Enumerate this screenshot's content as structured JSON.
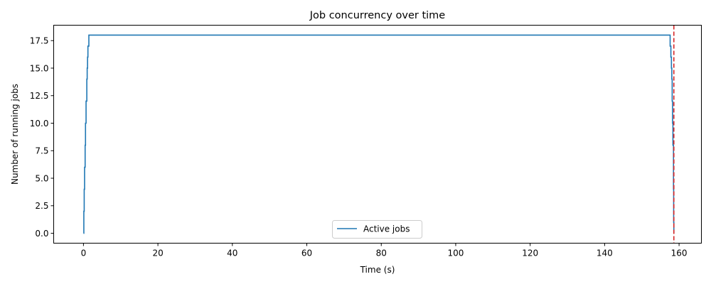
{
  "chart_data": {
    "type": "line",
    "title": "Job concurrency over time",
    "xlabel": "Time (s)",
    "ylabel": "Number of running jobs",
    "xlim": [
      -8,
      166
    ],
    "ylim": [
      -0.9,
      18.9
    ],
    "xticks": [
      0,
      20,
      40,
      60,
      80,
      100,
      120,
      140,
      160
    ],
    "xtick_labels": [
      "0",
      "20",
      "40",
      "60",
      "80",
      "100",
      "120",
      "140",
      "160"
    ],
    "yticks": [
      0,
      2.5,
      5,
      7.5,
      10,
      12.5,
      15,
      17.5
    ],
    "ytick_labels": [
      "0.0",
      "2.5",
      "5.0",
      "7.5",
      "10.0",
      "12.5",
      "15.0",
      "17.5"
    ],
    "grid": false,
    "legend": {
      "placement": "lower-center",
      "entries": [
        "Active jobs"
      ]
    },
    "series": [
      {
        "name": "Active jobs",
        "color": "#1f77b4",
        "step": "post",
        "x": [
          0,
          0.1,
          0.2,
          0.3,
          0.45,
          0.55,
          0.7,
          0.9,
          1.0,
          1.1,
          1.2,
          1.3,
          1.45,
          1.55,
          1.7,
          1.8,
          1.9,
          157.6,
          157.8,
          157.95,
          158.05,
          158.15,
          158.25,
          158.35,
          158.5,
          158.55,
          158.6
        ],
        "y": [
          0,
          2,
          4,
          6,
          8,
          10,
          12,
          14,
          15,
          16,
          17,
          17,
          18,
          18,
          18,
          18,
          18,
          17,
          16,
          15,
          14,
          12,
          10,
          8,
          4,
          1,
          0
        ]
      }
    ],
    "annotations": [
      {
        "type": "vline",
        "x": 158.6,
        "color": "#d62728",
        "style": "dashed"
      }
    ]
  }
}
